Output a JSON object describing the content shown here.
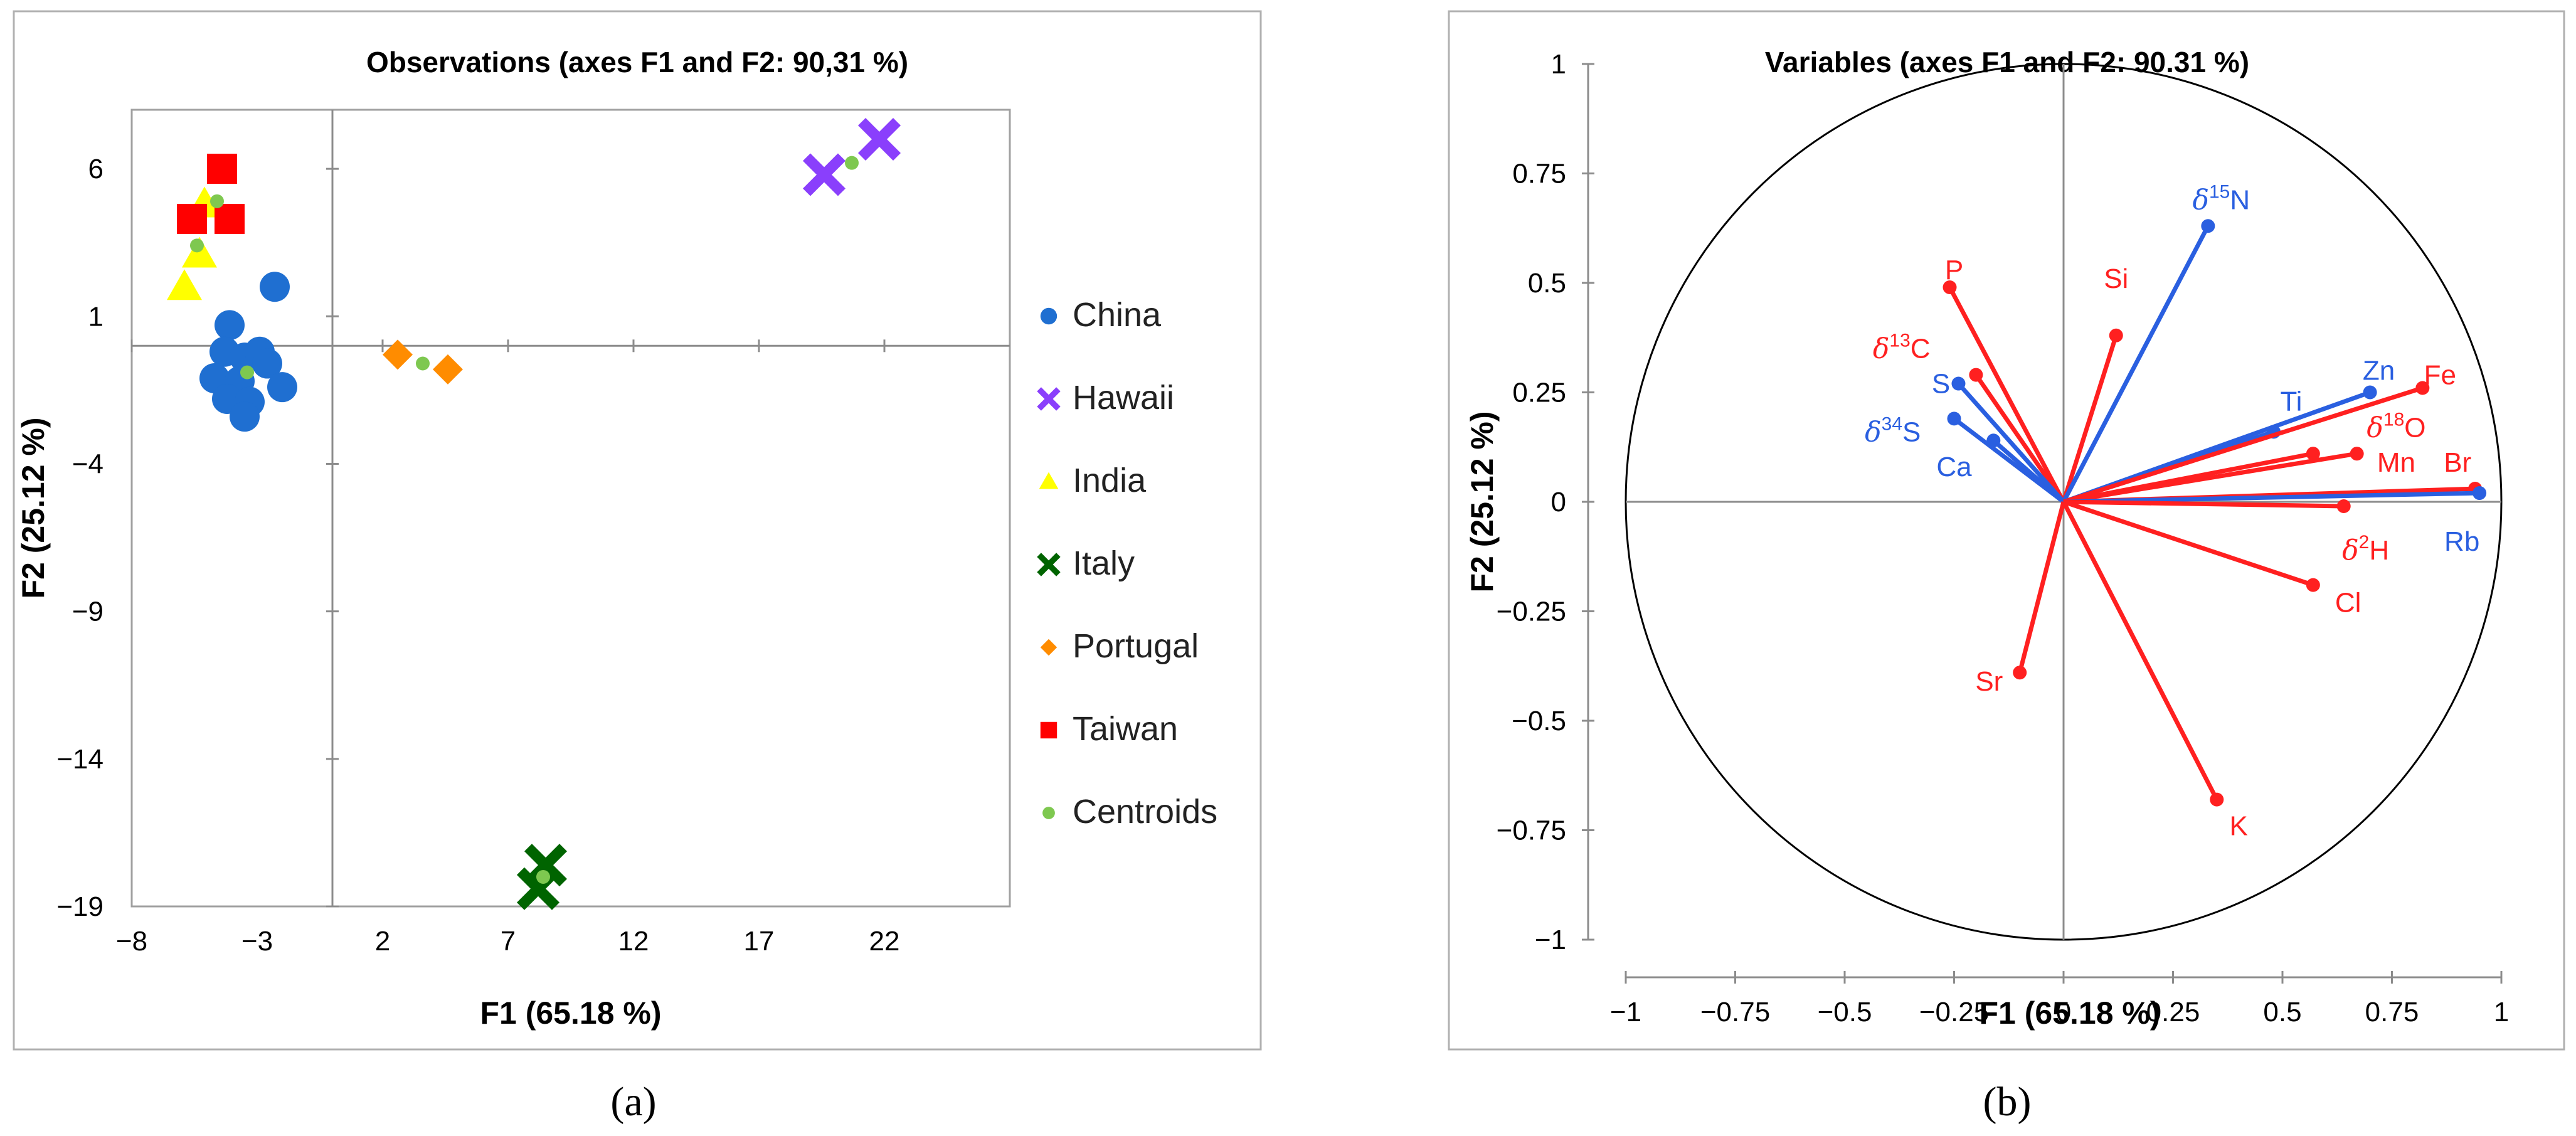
{
  "chart_data": [
    {
      "type": "scatter",
      "panel_label": "(a)",
      "title": "Observations (axes F1 and F2: 90,31 %)",
      "xlabel": "F1 (65.18 %)",
      "ylabel": "F2 (25.12 %)",
      "xlim": [
        -8,
        27
      ],
      "ylim": [
        -19,
        8
      ],
      "xticks": [
        -8,
        -3,
        2,
        7,
        12,
        17,
        22
      ],
      "yticks": [
        6,
        1,
        -4,
        -9,
        -14,
        -19
      ],
      "grid": false,
      "legend_position": "right",
      "series": [
        {
          "name": "China",
          "marker": "circle",
          "color": "#1f6fd1",
          "points": [
            [
              -2.3,
              2.0
            ],
            [
              -4.1,
              0.7
            ],
            [
              -4.3,
              -0.2
            ],
            [
              -3.5,
              -0.4
            ],
            [
              -2.9,
              -0.2
            ],
            [
              -2.6,
              -0.6
            ],
            [
              -4.7,
              -1.1
            ],
            [
              -3.7,
              -1.2
            ],
            [
              -4.2,
              -1.8
            ],
            [
              -3.3,
              -1.9
            ],
            [
              -2.0,
              -1.4
            ],
            [
              -3.5,
              -2.4
            ]
          ]
        },
        {
          "name": "Hawaii",
          "marker": "x-thick",
          "color": "#8a3ffc",
          "points": [
            [
              19.6,
              5.8
            ],
            [
              21.8,
              7.0
            ]
          ]
        },
        {
          "name": "India",
          "marker": "triangle",
          "color": "#ffff00",
          "points": [
            [
              -5.9,
              2.0
            ],
            [
              -5.3,
              3.1
            ],
            [
              -5.1,
              4.8
            ]
          ]
        },
        {
          "name": "Italy",
          "marker": "x-thick",
          "color": "#006400",
          "points": [
            [
              8.5,
              -17.6
            ],
            [
              8.2,
              -18.4
            ]
          ]
        },
        {
          "name": "Portugal",
          "marker": "diamond",
          "color": "#ff8c00",
          "points": [
            [
              2.6,
              -0.3
            ],
            [
              4.6,
              -0.8
            ]
          ]
        },
        {
          "name": "Taiwan",
          "marker": "square",
          "color": "#ff0000",
          "points": [
            [
              -4.4,
              6.0
            ],
            [
              -5.6,
              4.3
            ],
            [
              -4.1,
              4.3
            ]
          ]
        },
        {
          "name": "Centroids",
          "marker": "small-circle",
          "color": "#7ec850",
          "points": [
            [
              -3.4,
              -0.9
            ],
            [
              20.7,
              6.2
            ],
            [
              -5.4,
              3.4
            ],
            [
              8.4,
              -18.0
            ],
            [
              3.6,
              -0.6
            ],
            [
              -4.6,
              4.9
            ]
          ]
        }
      ]
    },
    {
      "type": "biplot",
      "panel_label": "(b)",
      "title": "Variables (axes F1 and F2: 90.31 %)",
      "xlabel": "F1 (65.18 %)",
      "ylabel": "F2 (25.12 %)",
      "xlim": [
        -1,
        1
      ],
      "ylim": [
        -1,
        1
      ],
      "ticks": [
        "-1",
        "-0.75",
        "-0.5",
        "-0.25",
        "0",
        "0.25",
        "0.5",
        "0.75",
        "1"
      ],
      "tick_values": [
        -1,
        -0.75,
        -0.5,
        -0.25,
        0,
        0.25,
        0.5,
        0.75,
        1
      ],
      "colors": {
        "red": "#ff2020",
        "blue": "#2a5fe0"
      },
      "correlation_circle": true,
      "vectors": [
        {
          "prefix": "",
          "sup": "",
          "base": "P",
          "x": -0.26,
          "y": 0.49,
          "color": "red",
          "lx": -0.25,
          "ly": 0.53
        },
        {
          "prefix": "",
          "sup": "",
          "base": "Si",
          "x": 0.12,
          "y": 0.38,
          "color": "red",
          "lx": 0.12,
          "ly": 0.51
        },
        {
          "prefix": "δ",
          "sup": "13",
          "base": "C",
          "x": -0.2,
          "y": 0.29,
          "color": "red",
          "lx": -0.37,
          "ly": 0.35
        },
        {
          "prefix": "",
          "sup": "",
          "base": "S",
          "x": -0.24,
          "y": 0.27,
          "color": "blue",
          "lx": -0.28,
          "ly": 0.27
        },
        {
          "prefix": "δ",
          "sup": "34",
          "base": "S",
          "x": -0.25,
          "y": 0.19,
          "color": "blue",
          "lx": -0.39,
          "ly": 0.16
        },
        {
          "prefix": "",
          "sup": "",
          "base": "Ca",
          "x": -0.16,
          "y": 0.14,
          "color": "blue",
          "lx": -0.25,
          "ly": 0.08
        },
        {
          "prefix": "δ",
          "sup": "15",
          "base": "N",
          "x": 0.33,
          "y": 0.63,
          "color": "blue",
          "lx": 0.36,
          "ly": 0.69
        },
        {
          "prefix": "",
          "sup": "",
          "base": "Zn",
          "x": 0.7,
          "y": 0.25,
          "color": "blue",
          "lx": 0.72,
          "ly": 0.3
        },
        {
          "prefix": "",
          "sup": "",
          "base": "Ti",
          "x": 0.48,
          "y": 0.16,
          "color": "blue",
          "lx": 0.52,
          "ly": 0.23
        },
        {
          "prefix": "",
          "sup": "",
          "base": "Fe",
          "x": 0.82,
          "y": 0.26,
          "color": "red",
          "lx": 0.86,
          "ly": 0.29
        },
        {
          "prefix": "δ",
          "sup": "18",
          "base": "O",
          "x": 0.57,
          "y": 0.11,
          "color": "red",
          "lx": 0.76,
          "ly": 0.17
        },
        {
          "prefix": "",
          "sup": "",
          "base": "Mn",
          "x": 0.67,
          "y": 0.11,
          "color": "red",
          "lx": 0.76,
          "ly": 0.09
        },
        {
          "prefix": "",
          "sup": "",
          "base": "Br",
          "x": 0.94,
          "y": 0.03,
          "color": "red",
          "lx": 0.9,
          "ly": 0.09
        },
        {
          "prefix": "",
          "sup": "",
          "base": "Rb",
          "x": 0.95,
          "y": 0.02,
          "color": "blue",
          "lx": 0.91,
          "ly": -0.09
        },
        {
          "prefix": "δ",
          "sup": "2",
          "base": "H",
          "x": 0.64,
          "y": -0.01,
          "color": "red",
          "lx": 0.69,
          "ly": -0.11
        },
        {
          "prefix": "",
          "sup": "",
          "base": "Cl",
          "x": 0.57,
          "y": -0.19,
          "color": "red",
          "lx": 0.65,
          "ly": -0.23
        },
        {
          "prefix": "",
          "sup": "",
          "base": "Sr",
          "x": -0.1,
          "y": -0.39,
          "color": "red",
          "lx": -0.17,
          "ly": -0.41
        },
        {
          "prefix": "",
          "sup": "",
          "base": "K",
          "x": 0.35,
          "y": -0.68,
          "color": "red",
          "lx": 0.4,
          "ly": -0.74
        }
      ]
    }
  ]
}
